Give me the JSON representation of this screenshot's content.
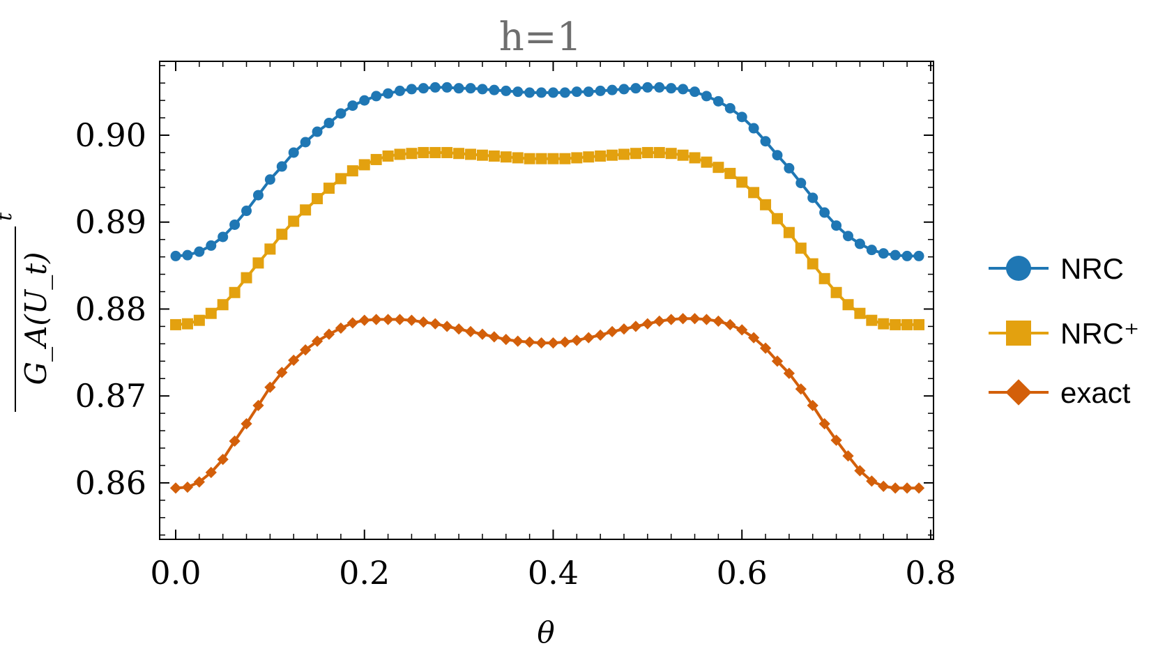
{
  "chart_data": {
    "type": "line",
    "title": "h=1",
    "xlabel": "θ",
    "ylabel": "G_A(U_t)",
    "ylabel_superscript": "t",
    "xlim": [
      -0.017,
      0.803
    ],
    "ylim": [
      0.8535,
      0.9085
    ],
    "xticks": [
      0.0,
      0.2,
      0.4,
      0.6,
      0.8
    ],
    "xtick_labels": [
      "0.0",
      "0.2",
      "0.4",
      "0.6",
      "0.8"
    ],
    "yticks": [
      0.86,
      0.87,
      0.88,
      0.89,
      0.9
    ],
    "ytick_labels": [
      "0.86",
      "0.87",
      "0.88",
      "0.89",
      "0.90"
    ],
    "grid": false,
    "legend_position": "right",
    "x": [
      0.0,
      0.0125,
      0.025,
      0.0375,
      0.05,
      0.0625,
      0.075,
      0.0875,
      0.1,
      0.1125,
      0.125,
      0.1375,
      0.15,
      0.1625,
      0.175,
      0.1875,
      0.2,
      0.2125,
      0.225,
      0.2375,
      0.25,
      0.2625,
      0.275,
      0.2875,
      0.3,
      0.3125,
      0.325,
      0.3375,
      0.35,
      0.3625,
      0.375,
      0.3875,
      0.4,
      0.4125,
      0.425,
      0.4375,
      0.45,
      0.4625,
      0.475,
      0.4875,
      0.5,
      0.5125,
      0.525,
      0.5375,
      0.55,
      0.5625,
      0.575,
      0.5875,
      0.6,
      0.6125,
      0.625,
      0.6375,
      0.65,
      0.6625,
      0.675,
      0.6875,
      0.7,
      0.7125,
      0.725,
      0.7375,
      0.75,
      0.7625,
      0.775,
      0.7875
    ],
    "series": [
      {
        "name": "NRC",
        "marker": "circle",
        "color": "#1f77b4",
        "values": [
          0.8861,
          0.8862,
          0.8866,
          0.8873,
          0.8883,
          0.8897,
          0.8913,
          0.8931,
          0.8949,
          0.8964,
          0.898,
          0.8992,
          0.9004,
          0.9014,
          0.9025,
          0.9034,
          0.904,
          0.9045,
          0.9048,
          0.9051,
          0.9053,
          0.9054,
          0.9055,
          0.9055,
          0.9054,
          0.9054,
          0.9053,
          0.9052,
          0.9051,
          0.905,
          0.9049,
          0.9049,
          0.9049,
          0.9049,
          0.905,
          0.905,
          0.9051,
          0.9052,
          0.9053,
          0.9054,
          0.9055,
          0.9055,
          0.9054,
          0.9053,
          0.905,
          0.9045,
          0.9039,
          0.9031,
          0.9021,
          0.9008,
          0.8993,
          0.8977,
          0.8962,
          0.8945,
          0.8928,
          0.8911,
          0.8896,
          0.8884,
          0.8875,
          0.8868,
          0.8864,
          0.8862,
          0.8861,
          0.8861
        ]
      },
      {
        "name": "NRC⁺",
        "marker": "square",
        "color": "#e3a10f",
        "values": [
          0.8782,
          0.8783,
          0.8787,
          0.8795,
          0.8805,
          0.8819,
          0.8836,
          0.8853,
          0.8869,
          0.8886,
          0.8901,
          0.8914,
          0.8927,
          0.8939,
          0.895,
          0.8959,
          0.8966,
          0.8972,
          0.8976,
          0.8978,
          0.8979,
          0.898,
          0.898,
          0.898,
          0.8979,
          0.8978,
          0.8977,
          0.8976,
          0.8975,
          0.8974,
          0.8973,
          0.8973,
          0.8973,
          0.8973,
          0.8974,
          0.8975,
          0.8976,
          0.8977,
          0.8978,
          0.8979,
          0.898,
          0.898,
          0.8979,
          0.8977,
          0.8974,
          0.8969,
          0.8963,
          0.8956,
          0.8946,
          0.8934,
          0.892,
          0.8904,
          0.8888,
          0.887,
          0.8852,
          0.8835,
          0.8819,
          0.8805,
          0.8795,
          0.8787,
          0.8783,
          0.8782,
          0.8782,
          0.8782
        ]
      },
      {
        "name": "exact",
        "marker": "diamond",
        "color": "#d35f0a",
        "values": [
          0.8594,
          0.8595,
          0.8601,
          0.8612,
          0.8627,
          0.8648,
          0.8668,
          0.8689,
          0.871,
          0.8727,
          0.8741,
          0.8753,
          0.8763,
          0.8771,
          0.8778,
          0.8784,
          0.8787,
          0.8788,
          0.8788,
          0.8788,
          0.8787,
          0.8785,
          0.8783,
          0.878,
          0.8777,
          0.8774,
          0.8771,
          0.8768,
          0.8765,
          0.8763,
          0.8762,
          0.8761,
          0.8761,
          0.8762,
          0.8764,
          0.8767,
          0.877,
          0.8774,
          0.8777,
          0.878,
          0.8783,
          0.8786,
          0.8788,
          0.8789,
          0.8789,
          0.8788,
          0.8786,
          0.8782,
          0.8776,
          0.8767,
          0.8755,
          0.874,
          0.8726,
          0.8708,
          0.8689,
          0.8668,
          0.8649,
          0.8631,
          0.8614,
          0.8602,
          0.8596,
          0.8594,
          0.8594,
          0.8594
        ]
      }
    ]
  }
}
